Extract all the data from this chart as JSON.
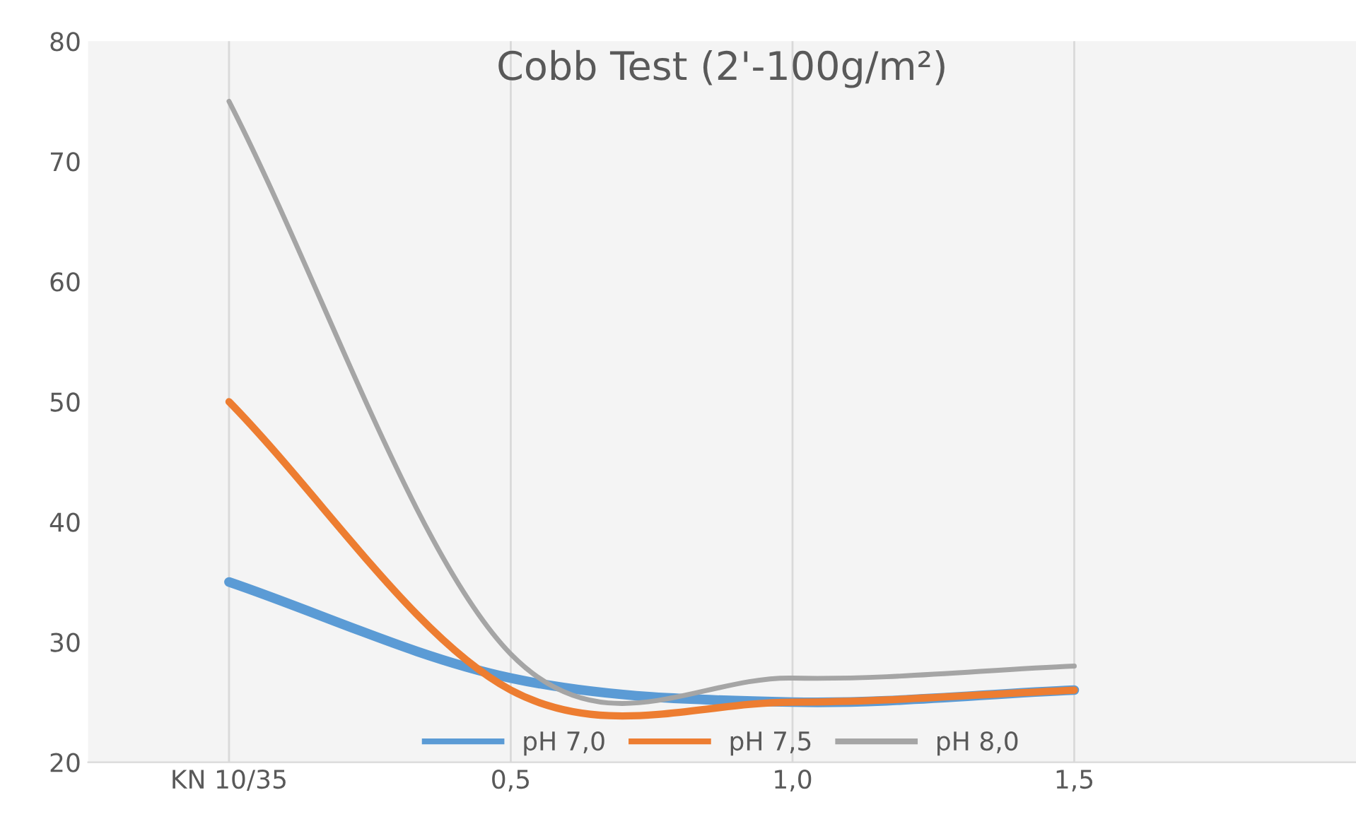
{
  "chart_data": {
    "type": "line",
    "title": "Cobb Test (2'-100g/m²)",
    "categories": [
      "KN 10/35",
      "0,5",
      "1,0",
      "1,5"
    ],
    "series": [
      {
        "name": "pH 7,0",
        "color": "#5b9bd5",
        "values": [
          35,
          27,
          25,
          26
        ]
      },
      {
        "name": "pH 7,5",
        "color": "#ed7d31",
        "values": [
          50,
          26,
          25,
          26
        ]
      },
      {
        "name": "pH 8,0",
        "color": "#a5a5a5",
        "values": [
          75,
          29,
          27,
          28
        ]
      }
    ],
    "ylim": [
      20,
      80
    ],
    "yticks": [
      20,
      30,
      40,
      50,
      60,
      70,
      80
    ],
    "grid": "x",
    "legend": "bottom",
    "marker": "none",
    "line_style": "solid"
  }
}
